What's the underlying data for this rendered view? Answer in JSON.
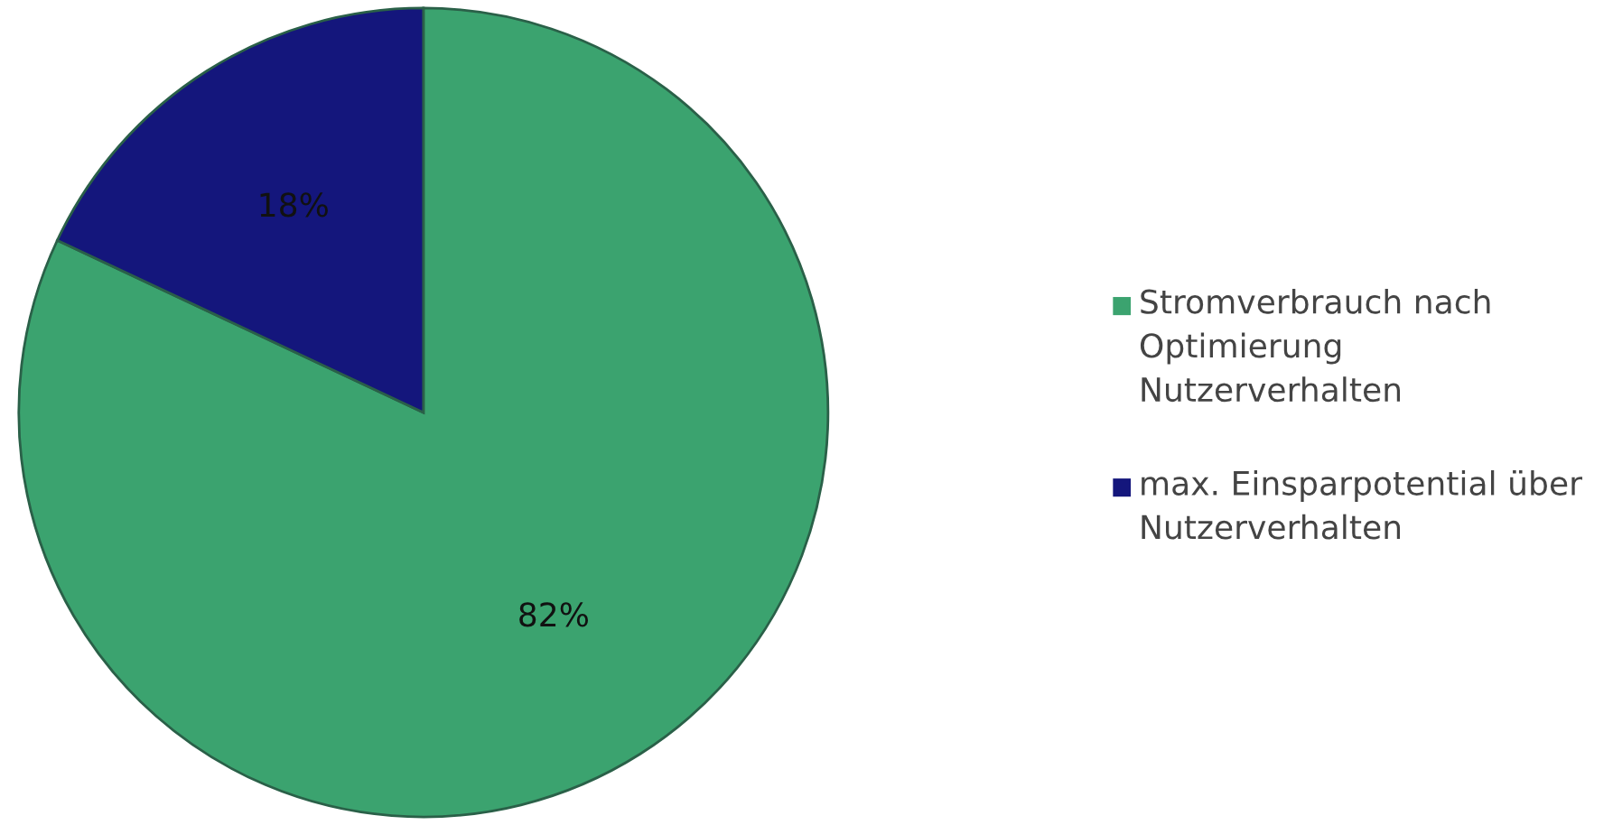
{
  "chart_data": {
    "type": "pie",
    "categories": [
      "Stromverbrauch nach Optimierung Nutzerverhalten",
      "max. Einsparpotential über Nutzerverhalten"
    ],
    "values": [
      82,
      18
    ],
    "colors": [
      "#3ba36f",
      "#14167c"
    ],
    "value_labels": [
      "82%",
      "18%"
    ],
    "legend": "right"
  }
}
